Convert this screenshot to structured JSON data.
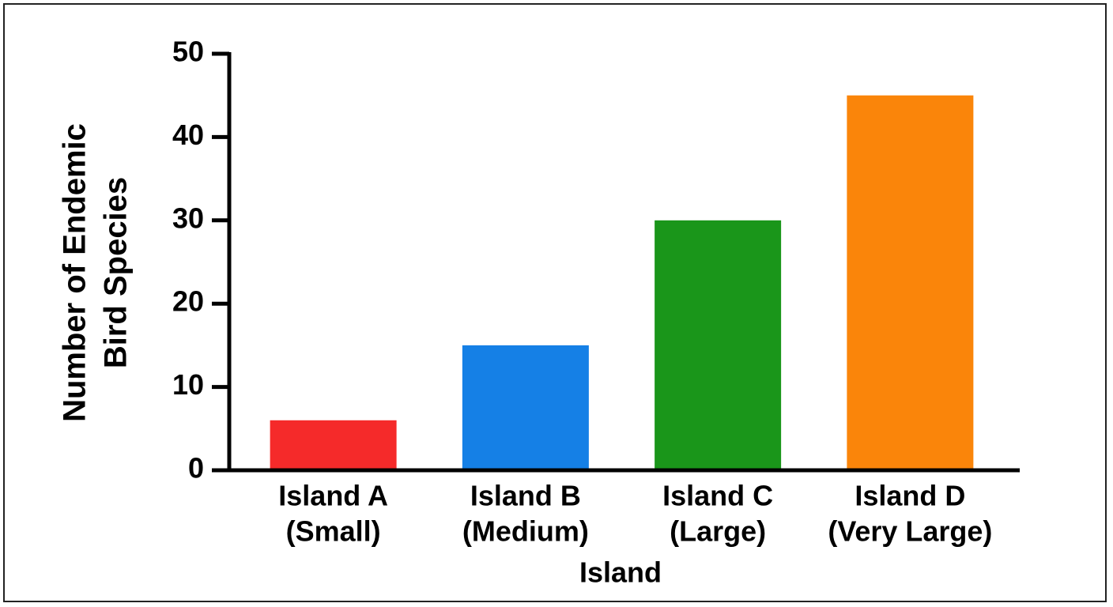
{
  "chart_data": {
    "type": "bar",
    "categories": [
      [
        "Island A",
        "(Small)"
      ],
      [
        "Island B",
        "(Medium)"
      ],
      [
        "Island C",
        "(Large)"
      ],
      [
        "Island D",
        "(Very Large)"
      ]
    ],
    "values": [
      6,
      15,
      30,
      45
    ],
    "colors": [
      "#f52a2a",
      "#1580e6",
      "#1a961a",
      "#fa850a"
    ],
    "x_label": "Island",
    "y_label": [
      "Number of Endemic",
      "Bird Species"
    ],
    "ylim": [
      0,
      50
    ],
    "yticks": [
      0,
      10,
      20,
      30,
      40,
      50
    ]
  }
}
